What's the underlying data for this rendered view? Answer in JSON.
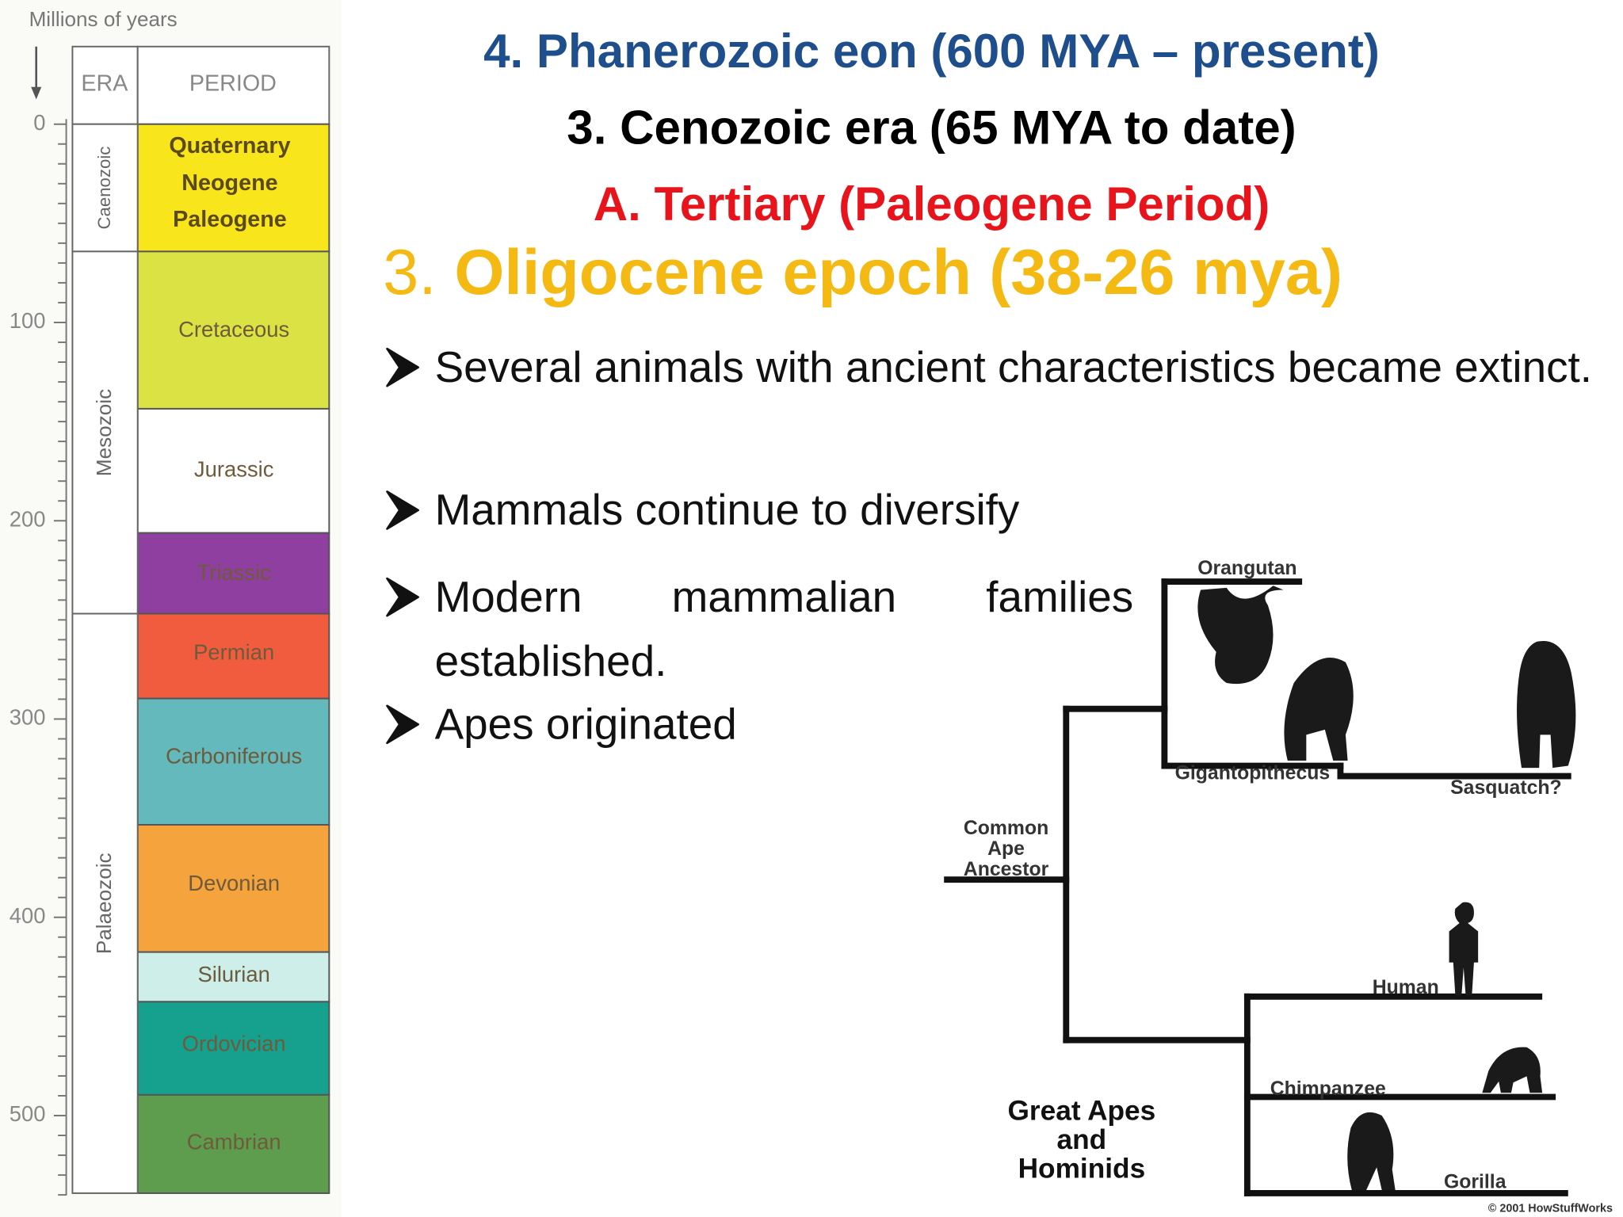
{
  "headings": {
    "eon": "4. Phanerozoic eon (600 MYA – present)",
    "era": "3. Cenozoic era (65 MYA to date)",
    "period": "A. Tertiary (Paleogene Period)",
    "epoch_number": "3.",
    "epoch_title": "Oligocene epoch (38-26 mya)"
  },
  "bullets": [
    "Several animals with ancient characteristics became extinct.",
    "Mammals continue to diversify",
    "Modern mammalian families established.",
    "Apes originated"
  ],
  "timescale": {
    "axis_label": "Millions of years",
    "headers": [
      "ERA",
      "PERIOD"
    ],
    "ticks": [
      "0",
      "100",
      "200",
      "300",
      "400",
      "500"
    ],
    "eras": [
      "Caenozoic",
      "Mesozoic",
      "Palaeozoic"
    ],
    "periods": [
      "Quaternary",
      "Neogene",
      "Paleogene",
      "Cretaceous",
      "Jurassic",
      "Triassic",
      "Permian",
      "Carboniferous",
      "Devonian",
      "Silurian",
      "Ordovician",
      "Cambrian"
    ]
  },
  "tree": {
    "leaves": [
      "Orangutan",
      "Gigantopithecus",
      "Sasquatch?",
      "Human",
      "Chimpanzee",
      "Gorilla"
    ],
    "root": [
      "Common",
      "Ape",
      "Ancestor"
    ],
    "group": [
      "Great Apes",
      "and",
      "Hominids"
    ],
    "credit": "© 2001 HowStuffWorks"
  }
}
